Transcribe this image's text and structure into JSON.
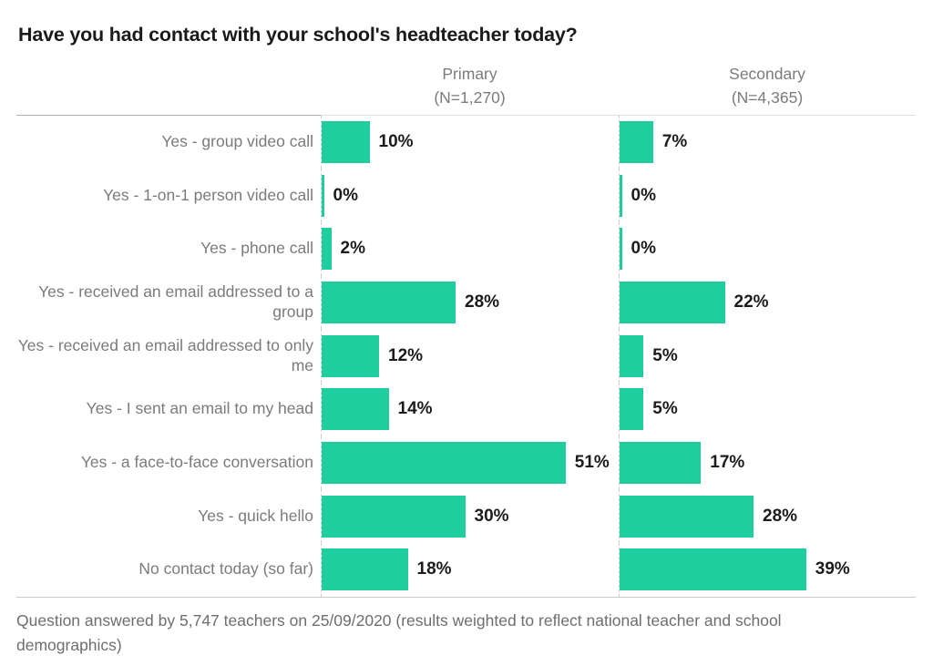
{
  "title": "Have you had contact with your school's headteacher today?",
  "columns": [
    {
      "label": "Primary",
      "n_label": "(N=1,270)"
    },
    {
      "label": "Secondary",
      "n_label": "(N=4,365)"
    }
  ],
  "footnote": "Question answered by 5,747 teachers on 25/09/2020 (results weighted to reflect national teacher and school demographics)",
  "colors": {
    "bar": "#1fce9e",
    "title_text": "#1a1a1a",
    "category_text": "#7b7b7b",
    "value_text": "#1c1c1c",
    "grid_line": "#cfcfcf",
    "footnote_text": "#6e6e6e"
  },
  "chart_data": {
    "type": "bar",
    "orientation": "horizontal",
    "title": "Have you had contact with your school's headteacher today?",
    "categories": [
      "Yes - group video call",
      "Yes - 1-on-1 person video call",
      "Yes - phone call",
      "Yes - received an email addressed to a group",
      "Yes - received an email addressed to only me",
      "Yes - I sent an email to my head",
      "Yes - a face-to-face conversation",
      "Yes - quick hello",
      "No contact today (so far)"
    ],
    "series": [
      {
        "name": "Primary (N=1,270)",
        "values": [
          10,
          0,
          2,
          28,
          12,
          14,
          51,
          30,
          18
        ]
      },
      {
        "name": "Secondary (N=4,365)",
        "values": [
          7,
          0,
          0,
          22,
          5,
          5,
          17,
          28,
          39
        ]
      }
    ],
    "value_format": "percent",
    "xlim": [
      0,
      62
    ],
    "grid": false,
    "legend_position": "column-headers",
    "annotation": "Question answered by 5,747 teachers on 25/09/2020 (results weighted to reflect national teacher and school demographics)"
  }
}
